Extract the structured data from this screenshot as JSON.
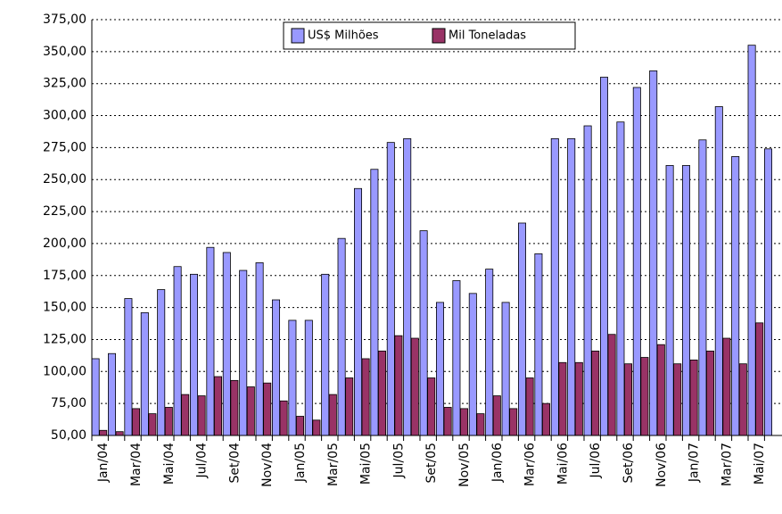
{
  "chart_data": {
    "type": "bar",
    "legend": "top",
    "grid": true,
    "categories": [
      "Jan/04",
      null,
      "Mar/04",
      null,
      "Mai/04",
      null,
      "Jul/04",
      null,
      "Set/04",
      null,
      "Nov/04",
      null,
      "Jan/05",
      null,
      "Mar/05",
      null,
      "Mai/05",
      null,
      "Jul/05",
      null,
      "Set/05",
      null,
      "Nov/05",
      null,
      "Jan/06",
      null,
      "Mar/06",
      null,
      "Mai/06",
      null,
      "Jul/06",
      null,
      "Set/06",
      null,
      "Nov/06",
      null,
      "Jan/07",
      null,
      "Mar/07",
      null,
      "Mai/07",
      null
    ],
    "series": [
      {
        "name": "US$ Milhões",
        "color": "#9999ff",
        "values": [
          110,
          114,
          157,
          146,
          164,
          182,
          176,
          197,
          193,
          179,
          185,
          156,
          140,
          140,
          176,
          204,
          243,
          258,
          279,
          282,
          210,
          154,
          171,
          161,
          180,
          154,
          216,
          192,
          282,
          282,
          292,
          330,
          295,
          322,
          335,
          261,
          261,
          281,
          307,
          268,
          355,
          274
        ]
      },
      {
        "name": "Mil Toneladas",
        "color": "#993366",
        "values": [
          54,
          53,
          71,
          67,
          72,
          82,
          81,
          96,
          93,
          88,
          91,
          77,
          65,
          62,
          82,
          95,
          110,
          116,
          128,
          126,
          95,
          72,
          71,
          67,
          81,
          71,
          95,
          75,
          107,
          107,
          116,
          129,
          106,
          111,
          121,
          106,
          109,
          116,
          126,
          106,
          138,
          null
        ]
      }
    ],
    "ylim": [
      50,
      375
    ],
    "yticks": [
      {
        "value": 50,
        "label": "50,00"
      },
      {
        "value": 75,
        "label": "75,00"
      },
      {
        "value": 100,
        "label": "100,00"
      },
      {
        "value": 125,
        "label": "125,00"
      },
      {
        "value": 150,
        "label": "150,00"
      },
      {
        "value": 175,
        "label": "175,00"
      },
      {
        "value": 200,
        "label": "200,00"
      },
      {
        "value": 225,
        "label": "225,00"
      },
      {
        "value": 250,
        "label": "250,00"
      },
      {
        "value": 275,
        "label": "275,00"
      },
      {
        "value": 300,
        "label": "300,00"
      },
      {
        "value": 325,
        "label": "325,00"
      },
      {
        "value": 350,
        "label": "350,00"
      },
      {
        "value": 375,
        "label": "375,00"
      }
    ]
  }
}
